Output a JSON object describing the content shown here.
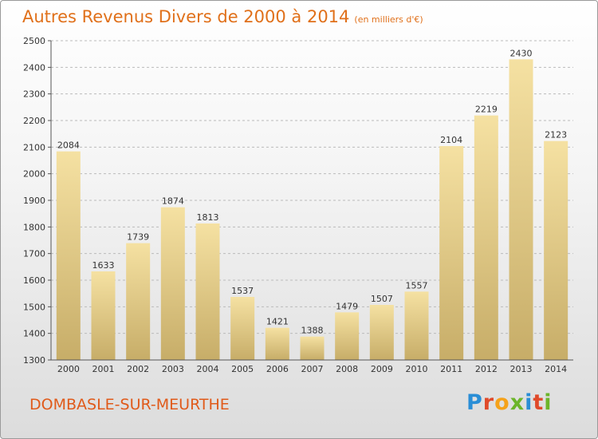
{
  "title": "Autres Revenus Divers de 2000 à 2014",
  "unit": "(en milliers d'€)",
  "location": "DOMBASLE-SUR-MEURTHE",
  "logo": [
    "P",
    "r",
    "o",
    "x",
    "i",
    "t",
    "i"
  ],
  "logo_colors": [
    "#2a8ed6",
    "#e04a2a",
    "#f5a21a",
    "#6cb52a",
    "#2a8ed6",
    "#e04a2a",
    "#6cb52a"
  ],
  "colors": {
    "bar_top": "#f5e1a2",
    "bar_bottom": "#c7ad68",
    "grid": "#bbbbbb",
    "axis": "#555555"
  },
  "chart_data": {
    "type": "bar",
    "categories": [
      "2000",
      "2001",
      "2002",
      "2003",
      "2004",
      "2005",
      "2006",
      "2007",
      "2008",
      "2009",
      "2010",
      "2011",
      "2012",
      "2013",
      "2014"
    ],
    "values": [
      2084,
      1633,
      1739,
      1874,
      1813,
      1537,
      1421,
      1388,
      1479,
      1507,
      1557,
      2104,
      2219,
      2430,
      2123
    ],
    "ylim": [
      1300,
      2500
    ],
    "yticks": [
      1300,
      1400,
      1500,
      1600,
      1700,
      1800,
      1900,
      2000,
      2100,
      2200,
      2300,
      2400,
      2500
    ],
    "grid": true,
    "title": "Autres Revenus Divers de 2000 à 2014",
    "xlabel": "",
    "ylabel": ""
  }
}
